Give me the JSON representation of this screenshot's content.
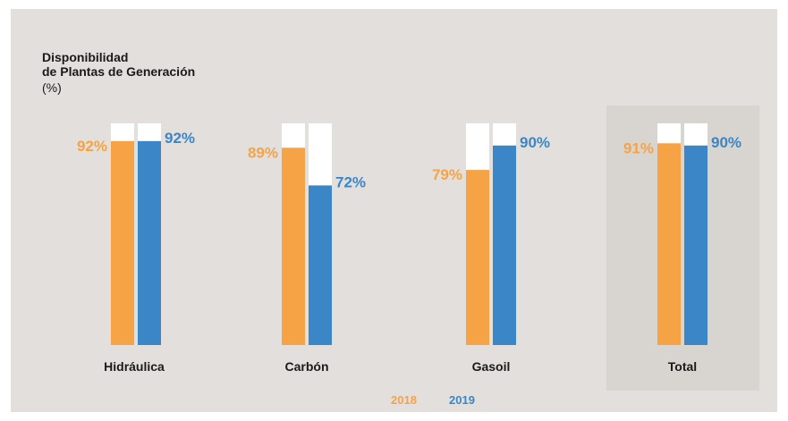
{
  "chart_data": {
    "type": "bar",
    "title_line1": "Disponibilidad",
    "title_line2": "de Plantas de Generación",
    "unit": "(%)",
    "categories": [
      "Hidráulica",
      "Carbón",
      "Gasoil",
      "Total"
    ],
    "series": [
      {
        "name": "2018",
        "values": [
          92,
          89,
          79,
          91
        ]
      },
      {
        "name": "2019",
        "values": [
          92,
          72,
          90,
          90
        ]
      }
    ],
    "value_labels": {
      "2018": [
        "92%",
        "89%",
        "79%",
        "91%"
      ],
      "2019": [
        "92%",
        "72%",
        "90%",
        "90%"
      ]
    },
    "ylim": [
      0,
      100
    ],
    "highlighted_category": "Total",
    "legend_position": "bottom-center",
    "grid": false,
    "colors": {
      "2018": "#f5a344",
      "2019": "#3b86c6",
      "track": "#ffffff",
      "panel": "#e3dfdd",
      "highlight": "#d8d4d0",
      "text": "#1a1a1a"
    }
  }
}
